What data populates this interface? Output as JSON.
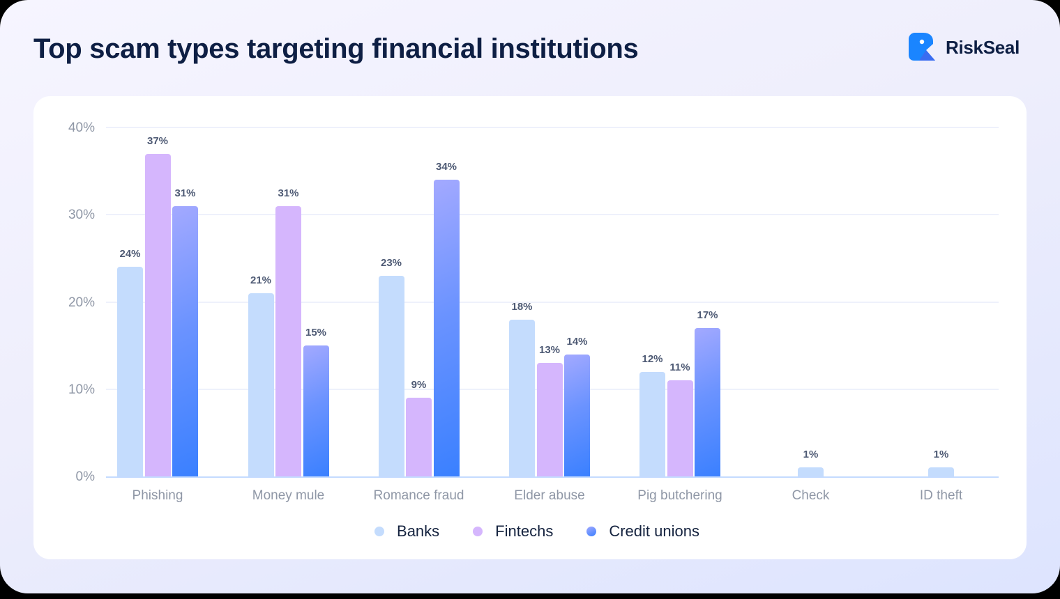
{
  "header": {
    "title": "Top scam types targeting financial institutions",
    "brand": "RiskSeal"
  },
  "colors": {
    "banks": "#c4dcfd",
    "fintechs": "#d5b6fd",
    "credit_unions": "#3a80ff",
    "title": "#0e1f44",
    "brand_blue": "#1a85ff"
  },
  "chart_data": {
    "type": "bar",
    "title": "Top scam types targeting financial institutions",
    "xlabel": "",
    "ylabel": "",
    "ylim": [
      0,
      40
    ],
    "yticks": [
      "0%",
      "10%",
      "20%",
      "30%",
      "40%"
    ],
    "grid": true,
    "legend_position": "bottom",
    "categories": [
      "Phishing",
      "Money mule",
      "Romance fraud",
      "Elder abuse",
      "Pig butchering",
      "Check",
      "ID theft"
    ],
    "series": [
      {
        "name": "Banks",
        "values": [
          24,
          21,
          23,
          18,
          12,
          1,
          1
        ]
      },
      {
        "name": "Fintechs",
        "values": [
          37,
          31,
          9,
          13,
          11,
          null,
          null
        ]
      },
      {
        "name": "Credit unions",
        "values": [
          31,
          15,
          34,
          14,
          17,
          null,
          null
        ]
      }
    ],
    "value_labels": [
      [
        "24%",
        "37%",
        "31%"
      ],
      [
        "21%",
        "31%",
        "15%"
      ],
      [
        "23%",
        "9%",
        "34%"
      ],
      [
        "18%",
        "13%",
        "14%"
      ],
      [
        "12%",
        "11%",
        "17%"
      ],
      [
        "1%"
      ],
      [
        "1%"
      ]
    ]
  },
  "legend": {
    "items": [
      {
        "label": "Banks"
      },
      {
        "label": "Fintechs"
      },
      {
        "label": "Credit unions"
      }
    ]
  }
}
